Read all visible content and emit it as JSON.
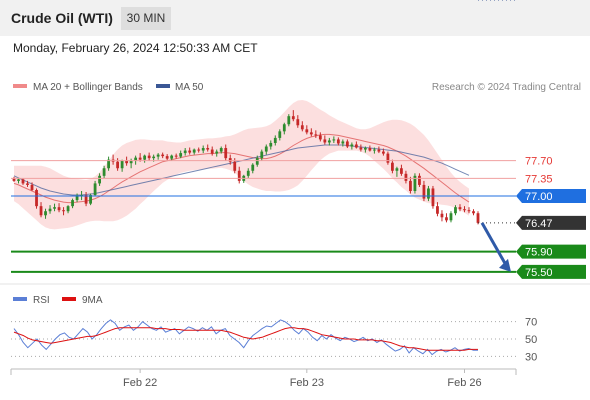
{
  "header": {
    "title": "Crude Oil (WTI)",
    "timeframe": "30 MIN",
    "datetime": "Monday, February 26, 2024 12:50:33 AM CET"
  },
  "legend": {
    "ma20": "MA 20 + Bollinger Bands",
    "ma50": "MA 50",
    "credit": "Research © 2024 Trading Central"
  },
  "chart_data": [
    {
      "type": "candlestick",
      "title": "",
      "x_ticks": [
        "Feb 22",
        "Feb 23",
        "Feb 26"
      ],
      "grid": false,
      "legend_position": "top-left",
      "colors": {
        "up": "#2e8b2e",
        "down": "#c62828",
        "ma20": "#e57373",
        "ma50": "#3a5795",
        "band": "#fbd9d9",
        "support": "#1a8a1a",
        "pivot": "#1f6fe0",
        "last": "#333333"
      },
      "ohlc": [
        [
          77.35,
          77.38,
          77.28,
          77.3
        ],
        [
          77.3,
          77.36,
          77.25,
          77.33
        ],
        [
          77.33,
          77.35,
          77.22,
          77.25
        ],
        [
          77.25,
          77.3,
          77.18,
          77.22
        ],
        [
          77.22,
          77.27,
          77.1,
          77.12
        ],
        [
          77.12,
          77.15,
          76.75,
          76.8
        ],
        [
          76.8,
          76.88,
          76.58,
          76.62
        ],
        [
          76.62,
          76.75,
          76.55,
          76.7
        ],
        [
          76.7,
          76.82,
          76.65,
          76.75
        ],
        [
          76.75,
          76.85,
          76.7,
          76.78
        ],
        [
          76.78,
          76.86,
          76.68,
          76.72
        ],
        [
          76.72,
          76.78,
          76.62,
          76.7
        ],
        [
          76.7,
          76.82,
          76.66,
          76.8
        ],
        [
          76.8,
          76.95,
          76.76,
          76.92
        ],
        [
          76.92,
          77.05,
          76.88,
          77.0
        ],
        [
          77.0,
          77.1,
          76.92,
          77.02
        ],
        [
          77.02,
          77.08,
          76.8,
          76.85
        ],
        [
          76.85,
          77.05,
          76.82,
          77.02
        ],
        [
          77.02,
          77.3,
          77.0,
          77.25
        ],
        [
          77.25,
          77.45,
          77.2,
          77.4
        ],
        [
          77.4,
          77.6,
          77.35,
          77.55
        ],
        [
          77.55,
          77.78,
          77.5,
          77.72
        ],
        [
          77.72,
          77.82,
          77.62,
          77.68
        ],
        [
          77.68,
          77.75,
          77.5,
          77.55
        ],
        [
          77.55,
          77.72,
          77.48,
          77.7
        ],
        [
          77.7,
          77.78,
          77.6,
          77.65
        ],
        [
          77.65,
          77.74,
          77.55,
          77.7
        ],
        [
          77.7,
          77.8,
          77.62,
          77.76
        ],
        [
          77.76,
          77.85,
          77.68,
          77.72
        ],
        [
          77.72,
          77.82,
          77.66,
          77.8
        ],
        [
          77.8,
          77.86,
          77.7,
          77.75
        ],
        [
          77.75,
          77.82,
          77.68,
          77.78
        ],
        [
          77.78,
          77.85,
          77.72,
          77.82
        ],
        [
          77.82,
          77.86,
          77.75,
          77.79
        ],
        [
          77.79,
          77.83,
          77.7,
          77.74
        ],
        [
          77.74,
          77.82,
          77.7,
          77.8
        ],
        [
          77.8,
          77.84,
          77.74,
          77.78
        ],
        [
          77.78,
          77.9,
          77.75,
          77.85
        ],
        [
          77.85,
          77.95,
          77.8,
          77.9
        ],
        [
          77.9,
          77.96,
          77.82,
          77.86
        ],
        [
          77.86,
          77.94,
          77.82,
          77.92
        ],
        [
          77.92,
          77.96,
          77.86,
          77.9
        ],
        [
          77.9,
          78.0,
          77.85,
          77.95
        ],
        [
          77.95,
          78.02,
          77.88,
          77.92
        ],
        [
          77.92,
          77.98,
          77.8,
          77.84
        ],
        [
          77.84,
          77.92,
          77.78,
          77.88
        ],
        [
          77.88,
          77.98,
          77.84,
          77.95
        ],
        [
          77.95,
          78.02,
          77.7,
          77.75
        ],
        [
          77.75,
          77.82,
          77.62,
          77.68
        ],
        [
          77.68,
          77.75,
          77.45,
          77.5
        ],
        [
          77.5,
          77.58,
          77.25,
          77.3
        ],
        [
          77.3,
          77.42,
          77.26,
          77.4
        ],
        [
          77.4,
          77.55,
          77.36,
          77.5
        ],
        [
          77.5,
          77.65,
          77.45,
          77.62
        ],
        [
          77.62,
          77.8,
          77.58,
          77.75
        ],
        [
          77.75,
          77.92,
          77.7,
          77.88
        ],
        [
          77.88,
          78.02,
          77.82,
          77.98
        ],
        [
          77.98,
          78.1,
          77.92,
          78.05
        ],
        [
          78.05,
          78.2,
          78.0,
          78.15
        ],
        [
          78.15,
          78.32,
          78.1,
          78.28
        ],
        [
          78.28,
          78.45,
          78.22,
          78.42
        ],
        [
          78.42,
          78.62,
          78.38,
          78.58
        ],
        [
          78.58,
          78.7,
          78.48,
          78.52
        ],
        [
          78.52,
          78.6,
          78.35,
          78.4
        ],
        [
          78.4,
          78.48,
          78.28,
          78.32
        ],
        [
          78.32,
          78.4,
          78.22,
          78.26
        ],
        [
          78.26,
          78.34,
          78.18,
          78.22
        ],
        [
          78.22,
          78.3,
          78.15,
          78.2
        ],
        [
          78.2,
          78.26,
          78.08,
          78.12
        ],
        [
          78.12,
          78.2,
          78.02,
          78.06
        ],
        [
          78.06,
          78.15,
          78.0,
          78.1
        ],
        [
          78.1,
          78.18,
          78.05,
          78.12
        ],
        [
          78.12,
          78.16,
          78.0,
          78.04
        ],
        [
          78.04,
          78.12,
          77.98,
          78.08
        ],
        [
          78.08,
          78.12,
          77.95,
          77.98
        ],
        [
          77.98,
          78.06,
          77.92,
          78.02
        ],
        [
          78.02,
          78.08,
          77.94,
          77.96
        ],
        [
          77.96,
          78.02,
          77.88,
          77.92
        ],
        [
          77.92,
          77.98,
          77.86,
          77.95
        ],
        [
          77.95,
          78.0,
          77.88,
          77.9
        ],
        [
          77.9,
          77.96,
          77.84,
          77.92
        ],
        [
          77.92,
          77.98,
          77.85,
          77.88
        ],
        [
          77.88,
          77.94,
          77.8,
          77.84
        ],
        [
          77.84,
          77.88,
          77.62,
          77.66
        ],
        [
          77.66,
          77.72,
          77.45,
          77.5
        ],
        [
          77.5,
          77.58,
          77.38,
          77.55
        ],
        [
          77.55,
          77.62,
          77.4,
          77.44
        ],
        [
          77.44,
          77.5,
          77.25,
          77.3
        ],
        [
          77.3,
          77.38,
          77.05,
          77.1
        ],
        [
          77.1,
          77.45,
          77.05,
          77.4
        ],
        [
          77.4,
          77.45,
          77.18,
          77.22
        ],
        [
          77.22,
          77.3,
          76.9,
          76.95
        ],
        [
          76.95,
          77.2,
          76.9,
          77.15
        ],
        [
          77.15,
          77.2,
          76.75,
          76.8
        ],
        [
          76.8,
          76.88,
          76.6,
          76.65
        ],
        [
          76.65,
          76.72,
          76.5,
          76.58
        ],
        [
          76.58,
          76.66,
          76.48,
          76.52
        ],
        [
          76.52,
          76.7,
          76.48,
          76.66
        ],
        [
          76.66,
          76.82,
          76.62,
          76.78
        ],
        [
          76.78,
          76.84,
          76.7,
          76.74
        ],
        [
          76.74,
          76.8,
          76.68,
          76.72
        ],
        [
          76.72,
          76.78,
          76.66,
          76.7
        ],
        [
          76.7,
          76.74,
          76.62,
          76.66
        ],
        [
          76.66,
          76.7,
          76.44,
          76.47
        ]
      ],
      "ma20": [
        77.25,
        77.22,
        77.18,
        77.14,
        77.1,
        77.06,
        77.02,
        76.98,
        76.95,
        76.92,
        76.9,
        76.88,
        76.87,
        76.87,
        76.88,
        76.89,
        76.9,
        76.92,
        76.95,
        76.99,
        77.04,
        77.1,
        77.16,
        77.22,
        77.28,
        77.33,
        77.38,
        77.43,
        77.48,
        77.52,
        77.56,
        77.6,
        77.64,
        77.68,
        77.7,
        77.72,
        77.74,
        77.76,
        77.78,
        77.8,
        77.81,
        77.82,
        77.83,
        77.84,
        77.84,
        77.85,
        77.86,
        77.86,
        77.85,
        77.84,
        77.82,
        77.8,
        77.78,
        77.76,
        77.75,
        77.74,
        77.74,
        77.76,
        77.79,
        77.83,
        77.88,
        77.94,
        78.0,
        78.05,
        78.1,
        78.14,
        78.17,
        78.19,
        78.21,
        78.22,
        78.22,
        78.21,
        78.2,
        78.18,
        78.16,
        78.14,
        78.12,
        78.1,
        78.08,
        78.06,
        78.04,
        78.02,
        78.0,
        77.97,
        77.93,
        77.89,
        77.84,
        77.79,
        77.73,
        77.67,
        77.61,
        77.55,
        77.48,
        77.41,
        77.34,
        77.27,
        77.2,
        77.13,
        77.06,
        77.0,
        76.94,
        76.88
      ],
      "ma50": [
        77.4,
        77.36,
        77.32,
        77.28,
        77.24,
        77.2,
        77.16,
        77.13,
        77.1,
        77.08,
        77.06,
        77.04,
        77.03,
        77.02,
        77.02,
        77.02,
        77.03,
        77.04,
        77.05,
        77.07,
        77.09,
        77.11,
        77.13,
        77.15,
        77.17,
        77.19,
        77.21,
        77.23,
        77.25,
        77.27,
        77.29,
        77.31,
        77.33,
        77.35,
        77.37,
        77.39,
        77.41,
        77.43,
        77.45,
        77.47,
        77.49,
        77.51,
        77.53,
        77.55,
        77.57,
        77.59,
        77.61,
        77.63,
        77.65,
        77.67,
        77.69,
        77.71,
        77.73,
        77.75,
        77.77,
        77.79,
        77.81,
        77.83,
        77.85,
        77.87,
        77.89,
        77.91,
        77.93,
        77.95,
        77.96,
        77.97,
        77.98,
        77.99,
        78.0,
        78.01,
        78.01,
        78.01,
        78.01,
        78.01,
        78.0,
        77.99,
        77.98,
        77.97,
        77.96,
        77.95,
        77.94,
        77.93,
        77.92,
        77.91,
        77.9,
        77.89,
        77.87,
        77.85,
        77.83,
        77.81,
        77.79,
        77.77,
        77.74,
        77.71,
        77.68,
        77.65,
        77.61,
        77.57,
        77.53,
        77.49,
        77.45,
        77.41
      ],
      "bollinger_width": [
        0.35,
        0.38,
        0.42,
        0.46,
        0.5,
        0.54,
        0.58,
        0.6,
        0.6,
        0.58,
        0.55,
        0.52,
        0.5,
        0.48,
        0.46,
        0.44,
        0.42,
        0.42,
        0.44,
        0.48,
        0.54,
        0.6,
        0.66,
        0.7,
        0.72,
        0.72,
        0.7,
        0.68,
        0.64,
        0.6,
        0.55,
        0.5,
        0.46,
        0.42,
        0.38,
        0.35,
        0.32,
        0.3,
        0.3,
        0.3,
        0.3,
        0.3,
        0.3,
        0.3,
        0.3,
        0.3,
        0.3,
        0.32,
        0.34,
        0.38,
        0.44,
        0.5,
        0.55,
        0.58,
        0.6,
        0.62,
        0.64,
        0.66,
        0.7,
        0.74,
        0.78,
        0.82,
        0.84,
        0.84,
        0.8,
        0.74,
        0.66,
        0.58,
        0.5,
        0.44,
        0.38,
        0.34,
        0.3,
        0.28,
        0.26,
        0.24,
        0.22,
        0.22,
        0.24,
        0.28,
        0.34,
        0.4,
        0.46,
        0.52,
        0.58,
        0.62,
        0.66,
        0.68,
        0.7,
        0.7,
        0.68,
        0.66,
        0.62,
        0.56,
        0.5,
        0.44,
        0.38,
        0.33,
        0.3,
        0.28,
        0.27,
        0.27
      ],
      "y_range": [
        75.3,
        78.9
      ],
      "levels": [
        {
          "value": 77.7,
          "label": "77.70",
          "kind": "resistance"
        },
        {
          "value": 77.35,
          "label": "77.35",
          "kind": "resistance"
        },
        {
          "value": 77.0,
          "label": "77.00",
          "kind": "pivot"
        },
        {
          "value": 76.47,
          "label": "76.47",
          "kind": "last"
        },
        {
          "value": 75.9,
          "label": "75.90",
          "kind": "support"
        },
        {
          "value": 75.5,
          "label": "75.50",
          "kind": "support"
        }
      ],
      "forecast": {
        "direction": "down",
        "from": 76.47,
        "to": 75.5
      }
    },
    {
      "type": "line",
      "legend": [
        "RSI",
        "9MA"
      ],
      "y_ticks": [
        70,
        50,
        30
      ],
      "y_range": [
        20,
        80
      ],
      "rsi": [
        62,
        55,
        46,
        40,
        45,
        50,
        43,
        38,
        44,
        50,
        55,
        57,
        52,
        50,
        56,
        62,
        58,
        50,
        55,
        62,
        68,
        72,
        68,
        60,
        64,
        66,
        60,
        64,
        70,
        66,
        62,
        60,
        64,
        58,
        60,
        62,
        56,
        60,
        64,
        62,
        59,
        63,
        60,
        64,
        56,
        60,
        62,
        54,
        50,
        46,
        40,
        48,
        54,
        58,
        62,
        65,
        64,
        68,
        72,
        70,
        66,
        60,
        56,
        62,
        58,
        52,
        48,
        54,
        50,
        55,
        51,
        48,
        52,
        50,
        47,
        49,
        52,
        48,
        50,
        46,
        49,
        44,
        40,
        36,
        38,
        42,
        34,
        40,
        36,
        33,
        38,
        32,
        36,
        38,
        35,
        37,
        40,
        36,
        38,
        39,
        37,
        37
      ],
      "rsi_ma": [
        58,
        56,
        54,
        51,
        49,
        48,
        47,
        46,
        45,
        46,
        47,
        48,
        49,
        50,
        51,
        52,
        53,
        53,
        54,
        56,
        58,
        60,
        62,
        63,
        63,
        63,
        63,
        63,
        63,
        63,
        63,
        62,
        62,
        62,
        61,
        61,
        61,
        60,
        60,
        60,
        60,
        60,
        60,
        60,
        60,
        60,
        59,
        58,
        56,
        54,
        52,
        51,
        50,
        51,
        52,
        54,
        56,
        58,
        60,
        62,
        63,
        63,
        62,
        62,
        61,
        59,
        57,
        55,
        54,
        53,
        52,
        51,
        50,
        50,
        50,
        49,
        49,
        49,
        49,
        48,
        48,
        47,
        46,
        44,
        42,
        41,
        40,
        40,
        39,
        38,
        37,
        37,
        37,
        37,
        37,
        37,
        37,
        37,
        37,
        38,
        38,
        38
      ]
    }
  ]
}
